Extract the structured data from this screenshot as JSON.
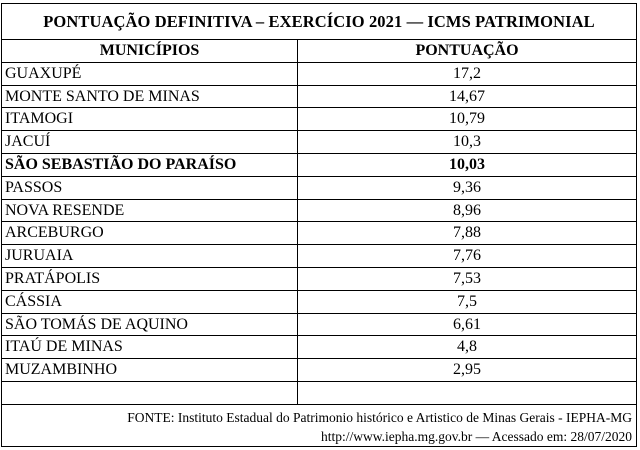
{
  "title": "PONTUAÇÃO DEFINITIVA – EXERCÍCIO 2021 — ICMS PATRIMONIAL",
  "columns": {
    "municipios": "MUNICÍPIOS",
    "pontuacao": "PONTUAÇÃO"
  },
  "rows": [
    {
      "municipio": "GUAXUPÉ",
      "pontuacao": "17,2"
    },
    {
      "municipio": "MONTE SANTO DE MINAS",
      "pontuacao": "14,67"
    },
    {
      "municipio": "ITAMOGI",
      "pontuacao": "10,79"
    },
    {
      "municipio": "JACUÍ",
      "pontuacao": "10,3"
    },
    {
      "municipio": "SÃO SEBASTIÃO DO PARAÍSO",
      "pontuacao": "10,03",
      "highlight": true
    },
    {
      "municipio": "PASSOS",
      "pontuacao": "9,36"
    },
    {
      "municipio": "NOVA RESENDE",
      "pontuacao": "8,96"
    },
    {
      "municipio": "ARCEBURGO",
      "pontuacao": "7,88"
    },
    {
      "municipio": "JURUAIA",
      "pontuacao": "7,76"
    },
    {
      "municipio": "PRATÁPOLIS",
      "pontuacao": "7,53"
    },
    {
      "municipio": "CÁSSIA",
      "pontuacao": "7,5"
    },
    {
      "municipio": "SÃO TOMÁS DE AQUINO",
      "pontuacao": "6,61"
    },
    {
      "municipio": "ITAÚ DE MINAS",
      "pontuacao": "4,8"
    },
    {
      "municipio": "MUZAMBINHO",
      "pontuacao": "2,95"
    }
  ],
  "footer": {
    "source": "FONTE: Instituto Estadual do Patrimonio histórico e Artistico de Minas Gerais - IEPHA-MG",
    "link": "http://www.iepha.mg.gov.br — Acessado em: 28/07/2020"
  }
}
